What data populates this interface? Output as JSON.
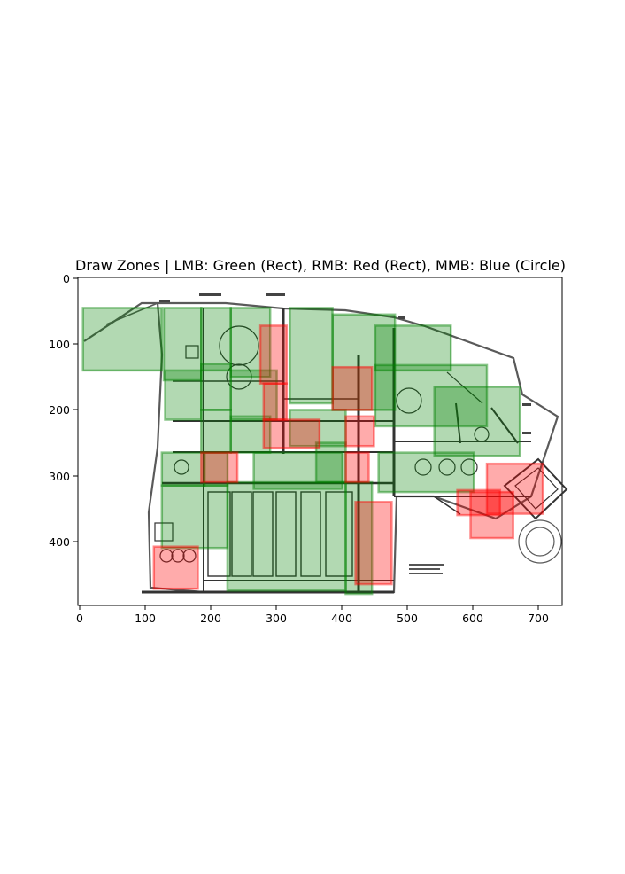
{
  "window": {
    "title": "Draw Zones | LMB: Green (Rect), RMB: Red (Rect), MMB: Blue (Circle)"
  },
  "colors": {
    "green_zone": "#008000",
    "red_zone": "#ff0000",
    "blue_zone": "#0000ff"
  },
  "axes": {
    "x_ticks": [
      "0",
      "100",
      "200",
      "300",
      "400",
      "500",
      "600",
      "700"
    ],
    "y_ticks": [
      "0",
      "100",
      "200",
      "300",
      "400"
    ],
    "xlim": [
      0,
      735
    ],
    "ylim": [
      0,
      495
    ]
  },
  "zones": {
    "green": [
      [
        5,
        45,
        125,
        140
      ],
      [
        128,
        45,
        185,
        155
      ],
      [
        185,
        45,
        230,
        140
      ],
      [
        130,
        140,
        185,
        215
      ],
      [
        185,
        130,
        230,
        200
      ],
      [
        230,
        45,
        290,
        150
      ],
      [
        230,
        140,
        300,
        215
      ],
      [
        185,
        200,
        230,
        265
      ],
      [
        230,
        210,
        290,
        265
      ],
      [
        320,
        45,
        385,
        190
      ],
      [
        385,
        55,
        480,
        200
      ],
      [
        450,
        72,
        565,
        140
      ],
      [
        450,
        132,
        620,
        225
      ],
      [
        540,
        165,
        670,
        270
      ],
      [
        455,
        265,
        600,
        325
      ],
      [
        125,
        265,
        190,
        315
      ],
      [
        190,
        265,
        225,
        315
      ],
      [
        265,
        265,
        400,
        320
      ],
      [
        125,
        315,
        225,
        410
      ],
      [
        225,
        310,
        405,
        475
      ],
      [
        405,
        310,
        445,
        480
      ],
      [
        360,
        250,
        405,
        310
      ],
      [
        320,
        200,
        405,
        255
      ]
    ],
    "red": [
      [
        275,
        72,
        315,
        160
      ],
      [
        280,
        160,
        315,
        215
      ],
      [
        280,
        215,
        365,
        258
      ],
      [
        385,
        135,
        445,
        200
      ],
      [
        405,
        210,
        448,
        255
      ],
      [
        405,
        265,
        440,
        310
      ],
      [
        420,
        340,
        475,
        465
      ],
      [
        185,
        265,
        240,
        310
      ],
      [
        113,
        408,
        180,
        472
      ],
      [
        595,
        325,
        660,
        395
      ],
      [
        620,
        282,
        705,
        358
      ],
      [
        575,
        322,
        640,
        360
      ]
    ],
    "blue": []
  }
}
